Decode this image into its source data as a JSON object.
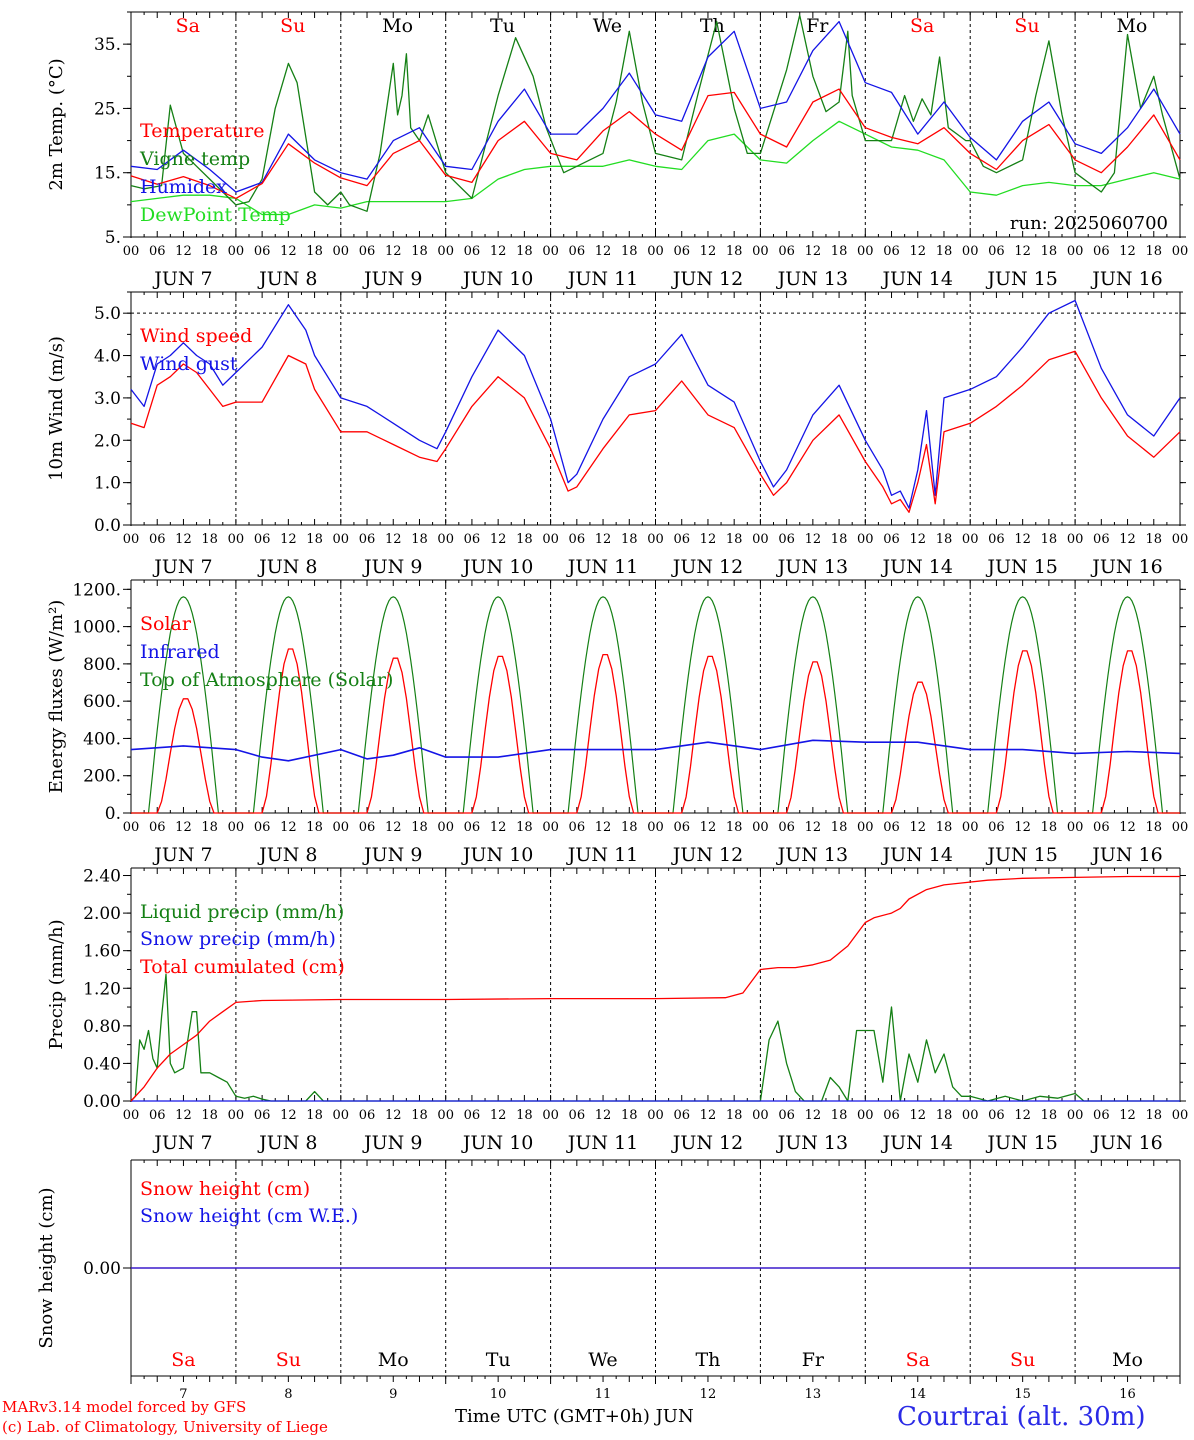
{
  "colors": {
    "red": "#ff0000",
    "green": "#158015",
    "blue": "#1414e6",
    "lightgreen": "#22dd22",
    "black": "#000000",
    "station": "#2a2ae6"
  },
  "days": {
    "weekday_labels": [
      "Sa",
      "Su",
      "Mo",
      "Tu",
      "We",
      "Th",
      "Fr",
      "Sa",
      "Su",
      "Mo"
    ],
    "weekend": [
      true,
      true,
      false,
      false,
      false,
      false,
      false,
      true,
      true,
      false
    ],
    "date_labels": [
      "JUN  7",
      "JUN  8",
      "JUN  9",
      "JUN 10",
      "JUN 11",
      "JUN 12",
      "JUN 13",
      "JUN 14",
      "JUN 15",
      "JUN 16"
    ],
    "day_numbers": [
      "7",
      "8",
      "9",
      "10",
      "11",
      "12",
      "13",
      "14",
      "15",
      "16"
    ],
    "hour_labels": [
      "00",
      "06",
      "12",
      "18"
    ],
    "final_hour_label": "00"
  },
  "footer": {
    "credit_line1": "MARv3.14 model forced by GFS",
    "credit_line2": "(c) Lab. of Climatology, University of Liege",
    "x_title": "Time UTC (GMT+0h) JUN",
    "station": "Courtrai (alt. 30m)"
  },
  "chart_data": [
    {
      "id": "temp",
      "type": "line",
      "ylabel": "2m Temp. (°C)",
      "ylim": [
        5,
        40
      ],
      "ticks": [
        5,
        15,
        25,
        35
      ],
      "tick_labels": [
        "5.",
        "15.",
        "25.",
        "35."
      ],
      "annotation": "run: 2025060700",
      "legend_position": "top-left",
      "x_unit": "hours since JUN 7 00 UTC",
      "series": [
        {
          "name": "Temperature",
          "color": "red",
          "x": [
            0,
            6,
            12,
            18,
            24,
            30,
            36,
            42,
            48,
            54,
            60,
            66,
            72,
            78,
            84,
            90,
            96,
            102,
            108,
            114,
            120,
            126,
            132,
            138,
            144,
            150,
            156,
            162,
            168,
            174,
            180,
            186,
            192,
            198,
            204,
            210,
            216,
            222,
            228,
            234,
            240
          ],
          "y": [
            14.5,
            13.2,
            14.4,
            13,
            11,
            13.3,
            19.5,
            16.5,
            14.2,
            13,
            18,
            20,
            14.6,
            13.5,
            20,
            23,
            18,
            17,
            21.5,
            24.5,
            21,
            18.5,
            27,
            27.5,
            21,
            19,
            26,
            28,
            22,
            20.5,
            19.5,
            22,
            18,
            15.5,
            20,
            22.5,
            17,
            15,
            19,
            24,
            17
          ]
        },
        {
          "name": "Vigne temp",
          "color": "green",
          "x": [
            0,
            3,
            7,
            9,
            12,
            15,
            18,
            21,
            24,
            27,
            30,
            33,
            36,
            38,
            42,
            45,
            48,
            50,
            54,
            57,
            60,
            61,
            62,
            63,
            64,
            66,
            68,
            72,
            78,
            84,
            88,
            92,
            95,
            99,
            102,
            108,
            111,
            114,
            117,
            120,
            126,
            130,
            134,
            138,
            141,
            144,
            150,
            153,
            156,
            159,
            162,
            164,
            165,
            168,
            174,
            177,
            179,
            181,
            183,
            185,
            187,
            189,
            191,
            192,
            195,
            198,
            204,
            207,
            210,
            213,
            216,
            222,
            225,
            228,
            231,
            234,
            236,
            240
          ],
          "y": [
            13,
            12.5,
            13,
            25.5,
            18,
            16,
            14,
            12,
            10,
            10.5,
            14,
            25,
            32,
            29,
            12,
            10,
            12,
            10,
            9,
            18,
            32,
            24,
            27,
            33.5,
            22,
            20,
            24,
            15,
            11,
            27,
            36,
            30,
            22,
            15,
            16,
            18,
            26,
            37,
            26,
            18,
            17,
            28,
            38.5,
            25,
            18,
            18,
            31,
            39.5,
            30,
            24.5,
            26,
            37,
            27,
            20,
            20,
            27,
            23,
            26.5,
            24,
            33,
            22,
            21,
            20,
            20,
            16,
            15,
            17,
            27,
            35.5,
            24,
            15,
            12,
            15,
            36.5,
            25,
            30,
            24,
            14
          ]
        },
        {
          "name": "Humidex",
          "color": "blue",
          "x": [
            0,
            6,
            12,
            18,
            24,
            30,
            36,
            42,
            48,
            54,
            60,
            66,
            72,
            78,
            84,
            90,
            96,
            102,
            108,
            114,
            120,
            126,
            132,
            138,
            144,
            150,
            156,
            162,
            168,
            174,
            180,
            186,
            192,
            198,
            204,
            210,
            216,
            222,
            228,
            234,
            240
          ],
          "y": [
            16,
            15.5,
            18.5,
            15.5,
            12,
            13.5,
            21,
            17,
            15,
            14,
            20,
            22,
            16,
            15.5,
            23,
            28,
            21,
            21,
            25,
            30.5,
            24,
            23,
            33,
            37,
            25,
            26,
            34,
            38.5,
            29,
            27.5,
            21,
            26,
            20.5,
            17,
            23,
            26,
            19.5,
            18,
            22,
            28,
            21
          ]
        },
        {
          "name": "DewPoint Temp",
          "color": "lightgreen",
          "x": [
            0,
            6,
            12,
            18,
            24,
            30,
            36,
            42,
            48,
            54,
            60,
            66,
            72,
            78,
            84,
            90,
            96,
            102,
            108,
            114,
            120,
            126,
            132,
            138,
            144,
            150,
            156,
            162,
            168,
            174,
            180,
            186,
            192,
            198,
            204,
            210,
            216,
            222,
            228,
            234,
            240
          ],
          "y": [
            10.5,
            11,
            11.5,
            11.5,
            11,
            8.5,
            8.5,
            10,
            9.5,
            10.5,
            10.5,
            10.5,
            10.5,
            11,
            14,
            15.5,
            16,
            16,
            16,
            17,
            16,
            15.5,
            20,
            21,
            17,
            16.5,
            20,
            23,
            21,
            19,
            18.5,
            17,
            12,
            11.5,
            13,
            13.5,
            13,
            13,
            14,
            15,
            14
          ]
        }
      ]
    },
    {
      "id": "wind",
      "type": "line",
      "ylabel": "10m Wind (m/s)",
      "ylim": [
        0,
        5.5
      ],
      "ticks": [
        0,
        1,
        2,
        3,
        4,
        5
      ],
      "tick_labels": [
        "0.0",
        "1.0",
        "2.0",
        "3.0",
        "4.0",
        "5.0"
      ],
      "dashed_level": 5.0,
      "legend_position": "top-left",
      "series": [
        {
          "name": "Wind speed",
          "color": "red",
          "x": [
            0,
            3,
            6,
            9,
            12,
            15,
            18,
            21,
            24,
            30,
            36,
            40,
            42,
            48,
            54,
            60,
            66,
            70,
            72,
            78,
            84,
            90,
            96,
            100,
            102,
            108,
            114,
            120,
            126,
            132,
            138,
            144,
            147,
            150,
            156,
            162,
            168,
            172,
            174,
            176,
            178,
            180,
            182,
            184,
            186,
            192,
            198,
            204,
            210,
            216,
            222,
            228,
            234,
            240
          ],
          "y": [
            2.4,
            2.3,
            3.3,
            3.5,
            3.8,
            3.6,
            3.2,
            2.8,
            2.9,
            2.9,
            4.0,
            3.8,
            3.2,
            2.2,
            2.2,
            1.9,
            1.6,
            1.5,
            1.8,
            2.8,
            3.5,
            3.0,
            1.8,
            0.8,
            0.9,
            1.8,
            2.6,
            2.7,
            3.4,
            2.6,
            2.3,
            1.2,
            0.7,
            1.0,
            2.0,
            2.6,
            1.5,
            0.9,
            0.5,
            0.6,
            0.3,
            1.0,
            1.9,
            0.5,
            2.2,
            2.4,
            2.8,
            3.3,
            3.9,
            4.1,
            3.0,
            2.1,
            1.6,
            2.2
          ]
        },
        {
          "name": "Wind gust",
          "color": "blue",
          "x": [
            0,
            3,
            6,
            9,
            12,
            15,
            18,
            21,
            24,
            30,
            36,
            40,
            42,
            48,
            54,
            60,
            66,
            70,
            72,
            78,
            84,
            90,
            96,
            100,
            102,
            108,
            114,
            120,
            126,
            132,
            138,
            144,
            147,
            150,
            156,
            162,
            168,
            172,
            174,
            176,
            178,
            180,
            182,
            184,
            186,
            192,
            198,
            204,
            210,
            216,
            222,
            228,
            234,
            240
          ],
          "y": [
            3.2,
            2.8,
            3.8,
            4.0,
            4.3,
            4.0,
            3.8,
            3.3,
            3.6,
            4.2,
            5.2,
            4.6,
            4.0,
            3.0,
            2.8,
            2.4,
            2.0,
            1.8,
            2.2,
            3.5,
            4.6,
            4.0,
            2.5,
            1.0,
            1.2,
            2.5,
            3.5,
            3.8,
            4.5,
            3.3,
            2.9,
            1.5,
            0.9,
            1.3,
            2.6,
            3.3,
            2.0,
            1.3,
            0.7,
            0.8,
            0.4,
            1.3,
            2.7,
            0.7,
            3.0,
            3.2,
            3.5,
            4.2,
            5.0,
            5.3,
            3.7,
            2.6,
            2.1,
            3.0
          ]
        }
      ]
    },
    {
      "id": "energy",
      "type": "line",
      "ylabel": "Energy fluxes (W/m²)",
      "ylim": [
        0,
        1250
      ],
      "ticks": [
        0,
        200,
        400,
        600,
        800,
        1000,
        1200
      ],
      "tick_labels": [
        "0.",
        "200.",
        "400.",
        "600.",
        "800.",
        "1000.",
        "1200."
      ],
      "legend_position": "top-left",
      "toa_solar": {
        "peak": 1160,
        "rise_hour": 4,
        "set_hour": 20
      },
      "series": [
        {
          "name": "Solar",
          "color": "red",
          "day_peaks": [
            620,
            890,
            840,
            850,
            860,
            850,
            820,
            710,
            880,
            880
          ],
          "note_values": "daily maxima W/m², days JUN 7 to JUN 16"
        },
        {
          "name": "Infrared",
          "color": "blue",
          "x": [
            0,
            12,
            24,
            30,
            36,
            48,
            54,
            60,
            66,
            72,
            84,
            96,
            108,
            120,
            132,
            144,
            156,
            168,
            180,
            192,
            204,
            216,
            228,
            240
          ],
          "y": [
            340,
            360,
            340,
            300,
            280,
            340,
            290,
            310,
            350,
            300,
            300,
            340,
            340,
            340,
            380,
            340,
            390,
            380,
            380,
            340,
            340,
            320,
            330,
            320
          ]
        },
        {
          "name": "Top of Atmosphere (Solar)",
          "color": "green"
        }
      ]
    },
    {
      "id": "precip",
      "type": "line",
      "ylabel": "Precip (mm/h)",
      "ylim": [
        0,
        2.48
      ],
      "ticks": [
        0,
        0.4,
        0.8,
        1.2,
        1.6,
        2.0,
        2.4
      ],
      "tick_labels": [
        "0.00",
        "0.40",
        "0.80",
        "1.20",
        "1.60",
        "2.00",
        "2.40"
      ],
      "legend_position": "top-left",
      "series": [
        {
          "name": "Liquid precip (mm/h)",
          "color": "green",
          "x": [
            0,
            1,
            2,
            3,
            4,
            5,
            6,
            7,
            8,
            9,
            10,
            12,
            14,
            15,
            16,
            18,
            20,
            22,
            24,
            26,
            28,
            30,
            32,
            40,
            42,
            44,
            144,
            146,
            148,
            150,
            152,
            154,
            158,
            160,
            162,
            164,
            166,
            168,
            170,
            172,
            174,
            176,
            178,
            180,
            182,
            184,
            186,
            188,
            190,
            192,
            196,
            200,
            204,
            208,
            212,
            216,
            218,
            240
          ],
          "y": [
            0,
            0.05,
            0.65,
            0.55,
            0.75,
            0.45,
            0.35,
            0.9,
            1.35,
            0.4,
            0.3,
            0.35,
            0.95,
            0.95,
            0.3,
            0.3,
            0.25,
            0.2,
            0.05,
            0.03,
            0.05,
            0.02,
            0,
            0,
            0.1,
            0,
            0,
            0.65,
            0.85,
            0.4,
            0.1,
            0,
            0,
            0.25,
            0.15,
            0,
            0.75,
            0.75,
            0.75,
            0.2,
            1.0,
            0,
            0.5,
            0.2,
            0.65,
            0.3,
            0.5,
            0.15,
            0.05,
            0.05,
            0,
            0.05,
            0,
            0.05,
            0.03,
            0.08,
            0,
            0
          ]
        },
        {
          "name": "Snow precip (mm/h)",
          "color": "blue",
          "x": [
            0,
            240
          ],
          "y": [
            0,
            0
          ]
        },
        {
          "name": "Total cumulated (cm)",
          "color": "red",
          "x": [
            0,
            3,
            6,
            9,
            12,
            15,
            18,
            21,
            24,
            30,
            48,
            72,
            96,
            120,
            136,
            140,
            144,
            148,
            152,
            156,
            160,
            164,
            168,
            170,
            174,
            176,
            178,
            182,
            186,
            190,
            196,
            204,
            216,
            228,
            240
          ],
          "y": [
            0,
            0.15,
            0.35,
            0.5,
            0.6,
            0.7,
            0.85,
            0.95,
            1.05,
            1.07,
            1.08,
            1.08,
            1.09,
            1.09,
            1.1,
            1.15,
            1.4,
            1.42,
            1.42,
            1.45,
            1.5,
            1.65,
            1.9,
            1.95,
            2.0,
            2.05,
            2.15,
            2.25,
            2.3,
            2.32,
            2.35,
            2.37,
            2.38,
            2.39,
            2.39
          ]
        }
      ]
    },
    {
      "id": "snow",
      "type": "line",
      "ylabel": "Snow height (cm)",
      "ylim": [
        -1,
        1
      ],
      "ticks": [
        0
      ],
      "tick_labels": [
        "0.00"
      ],
      "legend_position": "top-left",
      "series": [
        {
          "name": "Snow height (cm)",
          "color": "red",
          "x": [
            0,
            240
          ],
          "y": [
            0,
            0
          ]
        },
        {
          "name": "Snow height (cm W.E.)",
          "color": "blue",
          "x": [
            0,
            240
          ],
          "y": [
            0,
            0
          ]
        }
      ]
    }
  ]
}
